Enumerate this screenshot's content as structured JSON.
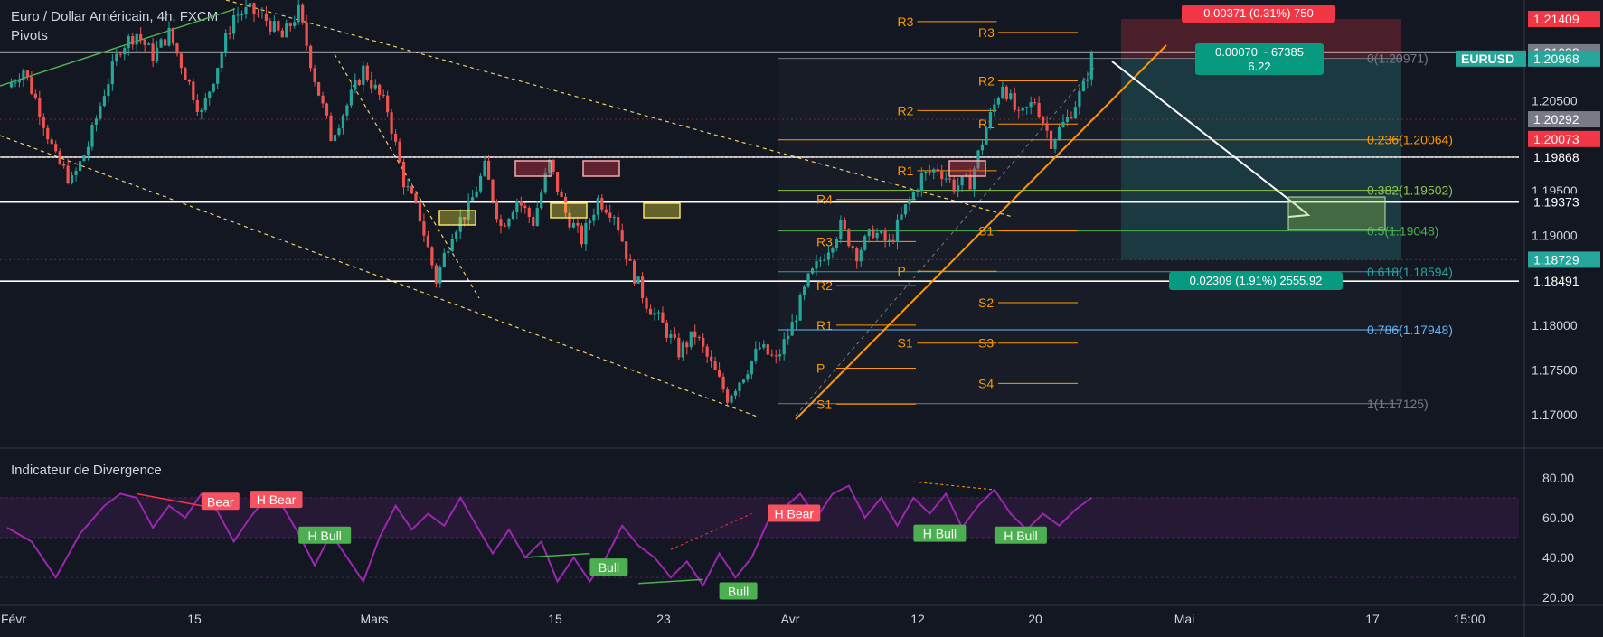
{
  "header": {
    "title": "Euro / Dollar Américain, 4h, FXCM",
    "study": "Pivots"
  },
  "indicator": {
    "title": "Indicateur de Divergence"
  },
  "colors": {
    "background": "#131722",
    "candle_up": "#26a69a",
    "candle_down": "#ef5350",
    "pivot": "#ff9800",
    "fib_green": "#4caf50",
    "fib_blue": "#64b5f6",
    "osc": "#9c27b0",
    "bear": "#f23645",
    "bull": "#4caf50"
  },
  "chart_data": [
    {
      "type": "candlestick",
      "symbol": "EURUSD",
      "timeframe": "4h",
      "ylim": [
        1.1665,
        1.215
      ],
      "x_ticks": [
        "Févr",
        "15",
        "Mars",
        "15",
        "23",
        "Avr",
        "12",
        "20",
        "Mai",
        "17",
        "15:00"
      ],
      "y_ticks": [
        "1.17000",
        "1.17500",
        "1.18000",
        "1.18500",
        "1.19000",
        "1.19500",
        "1.20500"
      ],
      "price_path": [
        {
          "t": 0,
          "p": 1.2065
        },
        {
          "t": 2,
          "p": 1.2085
        },
        {
          "t": 4,
          "p": 1.204
        },
        {
          "t": 6,
          "p": 1.1985
        },
        {
          "t": 8,
          "p": 1.196
        },
        {
          "t": 10,
          "p": 1.2
        },
        {
          "t": 12,
          "p": 1.206
        },
        {
          "t": 14,
          "p": 1.211
        },
        {
          "t": 16,
          "p": 1.2125
        },
        {
          "t": 18,
          "p": 1.21
        },
        {
          "t": 20,
          "p": 1.2125
        },
        {
          "t": 22,
          "p": 1.208
        },
        {
          "t": 24,
          "p": 1.2035
        },
        {
          "t": 26,
          "p": 1.209
        },
        {
          "t": 28,
          "p": 1.2145
        },
        {
          "t": 30,
          "p": 1.215
        },
        {
          "t": 32,
          "p": 1.214
        },
        {
          "t": 34,
          "p": 1.212
        },
        {
          "t": 36,
          "p": 1.215
        },
        {
          "t": 38,
          "p": 1.2075
        },
        {
          "t": 40,
          "p": 1.201
        },
        {
          "t": 42,
          "p": 1.2045
        },
        {
          "t": 44,
          "p": 1.2085
        },
        {
          "t": 45,
          "p": 1.207
        },
        {
          "t": 47,
          "p": 1.204
        },
        {
          "t": 49,
          "p": 1.196
        },
        {
          "t": 51,
          "p": 1.192
        },
        {
          "t": 53,
          "p": 1.185
        },
        {
          "t": 55,
          "p": 1.1905
        },
        {
          "t": 57,
          "p": 1.193
        },
        {
          "t": 59,
          "p": 1.1975
        },
        {
          "t": 61,
          "p": 1.191
        },
        {
          "t": 63,
          "p": 1.194
        },
        {
          "t": 65,
          "p": 1.1915
        },
        {
          "t": 67,
          "p": 1.198
        },
        {
          "t": 69,
          "p": 1.1925
        },
        {
          "t": 71,
          "p": 1.1895
        },
        {
          "t": 73,
          "p": 1.194
        },
        {
          "t": 75,
          "p": 1.1925
        },
        {
          "t": 77,
          "p": 1.1865
        },
        {
          "t": 79,
          "p": 1.1825
        },
        {
          "t": 81,
          "p": 1.18
        },
        {
          "t": 83,
          "p": 1.177
        },
        {
          "t": 85,
          "p": 1.179
        },
        {
          "t": 87,
          "p": 1.1755
        },
        {
          "t": 89,
          "p": 1.172
        },
        {
          "t": 91,
          "p": 1.1745
        },
        {
          "t": 93,
          "p": 1.1775
        },
        {
          "t": 95,
          "p": 1.176
        },
        {
          "t": 97,
          "p": 1.18
        },
        {
          "t": 99,
          "p": 1.185
        },
        {
          "t": 101,
          "p": 1.188
        },
        {
          "t": 103,
          "p": 1.191
        },
        {
          "t": 105,
          "p": 1.188
        },
        {
          "t": 107,
          "p": 1.1905
        },
        {
          "t": 109,
          "p": 1.189
        },
        {
          "t": 111,
          "p": 1.193
        },
        {
          "t": 113,
          "p": 1.1965
        },
        {
          "t": 115,
          "p": 1.1975
        },
        {
          "t": 117,
          "p": 1.1955
        },
        {
          "t": 119,
          "p": 1.196
        },
        {
          "t": 121,
          "p": 1.202
        },
        {
          "t": 123,
          "p": 1.207
        },
        {
          "t": 125,
          "p": 1.203
        },
        {
          "t": 127,
          "p": 1.205
        },
        {
          "t": 129,
          "p": 1.2005
        },
        {
          "t": 131,
          "p": 1.203
        },
        {
          "t": 133,
          "p": 1.2065
        },
        {
          "t": 134,
          "p": 1.2097
        }
      ],
      "horizontal_lines": [
        1.2104,
        1.1987,
        1.1937,
        1.1849
      ],
      "fibonacci": [
        {
          "level": "0(1.20971)",
          "price": 1.20971,
          "color": "#787b86"
        },
        {
          "level": "0.236(1.20064)",
          "price": 1.20064,
          "color": "#ff9800"
        },
        {
          "level": "0.382(1.19502)",
          "price": 1.19502,
          "color": "#8bc34a"
        },
        {
          "level": "0.5(1.19048)",
          "price": 1.19048,
          "color": "#4caf50"
        },
        {
          "level": "0.618(1.18594)",
          "price": 1.18594,
          "color": "#26a69a"
        },
        {
          "level": "0.786(1.17948)",
          "price": 1.17948,
          "color": "#64b5f6"
        },
        {
          "level": "1(1.17125)",
          "price": 1.17125,
          "color": "#787b86"
        }
      ],
      "pivot_labels": [
        {
          "text": "R3",
          "price": 1.2138,
          "t": 110
        },
        {
          "text": "R3",
          "price": 1.2126,
          "t": 120
        },
        {
          "text": "R2",
          "price": 1.2072,
          "t": 120
        },
        {
          "text": "R2",
          "price": 1.2039,
          "t": 110
        },
        {
          "text": "R1",
          "price": 1.2024,
          "t": 120
        },
        {
          "text": "R1",
          "price": 1.1972,
          "t": 110
        },
        {
          "text": "R4",
          "price": 1.194,
          "t": 100
        },
        {
          "text": "S1",
          "price": 1.1905,
          "t": 120
        },
        {
          "text": "R3",
          "price": 1.1893,
          "t": 100
        },
        {
          "text": "P",
          "price": 1.186,
          "t": 110
        },
        {
          "text": "R2",
          "price": 1.1844,
          "t": 100
        },
        {
          "text": "S2",
          "price": 1.1825,
          "t": 120
        },
        {
          "text": "R1",
          "price": 1.18,
          "t": 100
        },
        {
          "text": "S1",
          "price": 1.178,
          "t": 110
        },
        {
          "text": "S3",
          "price": 1.178,
          "t": 120
        },
        {
          "text": "P",
          "price": 1.1752,
          "t": 100
        },
        {
          "text": "S4",
          "price": 1.1735,
          "t": 120
        },
        {
          "text": "S1",
          "price": 1.1712,
          "t": 100
        }
      ],
      "price_tags": [
        {
          "text": "1.21409",
          "price": 1.21409,
          "bg": "#f23645"
        },
        {
          "text": "1.21039",
          "price": 1.21039,
          "bg": "#131722"
        },
        {
          "text": "1.21038",
          "price": 1.21038,
          "bg": "#787b86"
        },
        {
          "text": "1.20968",
          "price": 1.20968,
          "bg": "#26a69a"
        },
        {
          "text": "1.20292",
          "price": 1.20292,
          "bg": "#787b86"
        },
        {
          "text": "1.20073",
          "price": 1.20073,
          "bg": "#f23645"
        },
        {
          "text": "1.19868",
          "price": 1.19868,
          "bg": "#131722"
        },
        {
          "text": "1.19373",
          "price": 1.19373,
          "bg": "#131722"
        },
        {
          "text": "1.18729",
          "price": 1.18729,
          "bg": "#26a69a"
        },
        {
          "text": "1.18491",
          "price": 1.18491,
          "bg": "#131722"
        }
      ],
      "symbol_tag": "EURUSD",
      "position": {
        "stop_label": "0.00371 (0.31%) 750",
        "entry_label_1": "0.00070 ~ 67385",
        "entry_label_2": "6.22",
        "target_label": "0.02309 (1.91%) 2555.92"
      }
    },
    {
      "type": "line",
      "title": "Indicateur de Divergence",
      "ylim": [
        16,
        84
      ],
      "y_ticks": [
        "80.00",
        "60.00",
        "40.00",
        "20.00"
      ],
      "band": [
        50,
        70
      ],
      "values": [
        [
          0,
          55
        ],
        [
          3,
          48
        ],
        [
          6,
          30
        ],
        [
          9,
          52
        ],
        [
          12,
          66
        ],
        [
          14,
          72
        ],
        [
          16,
          70
        ],
        [
          18,
          55
        ],
        [
          20,
          66
        ],
        [
          22,
          60
        ],
        [
          24,
          72
        ],
        [
          26,
          63
        ],
        [
          28,
          48
        ],
        [
          30,
          60
        ],
        [
          32,
          70
        ],
        [
          34,
          66
        ],
        [
          36,
          52
        ],
        [
          38,
          36
        ],
        [
          40,
          52
        ],
        [
          42,
          40
        ],
        [
          44,
          28
        ],
        [
          46,
          50
        ],
        [
          48,
          66
        ],
        [
          50,
          54
        ],
        [
          52,
          62
        ],
        [
          54,
          56
        ],
        [
          56,
          70
        ],
        [
          58,
          56
        ],
        [
          60,
          42
        ],
        [
          62,
          54
        ],
        [
          64,
          40
        ],
        [
          66,
          48
        ],
        [
          68,
          28
        ],
        [
          70,
          40
        ],
        [
          72,
          28
        ],
        [
          74,
          40
        ],
        [
          76,
          56
        ],
        [
          78,
          46
        ],
        [
          80,
          40
        ],
        [
          82,
          30
        ],
        [
          84,
          38
        ],
        [
          86,
          26
        ],
        [
          88,
          42
        ],
        [
          90,
          30
        ],
        [
          92,
          40
        ],
        [
          94,
          58
        ],
        [
          96,
          65
        ],
        [
          98,
          72
        ],
        [
          100,
          60
        ],
        [
          102,
          72
        ],
        [
          104,
          76
        ],
        [
          106,
          60
        ],
        [
          108,
          70
        ],
        [
          110,
          56
        ],
        [
          112,
          70
        ],
        [
          114,
          62
        ],
        [
          116,
          72
        ],
        [
          118,
          55
        ],
        [
          120,
          66
        ],
        [
          122,
          74
        ],
        [
          124,
          62
        ],
        [
          126,
          54
        ],
        [
          128,
          62
        ],
        [
          130,
          56
        ],
        [
          132,
          64
        ],
        [
          134,
          70
        ]
      ],
      "labels": [
        {
          "text": "Bear",
          "t": 24,
          "v": 68,
          "kind": "bear"
        },
        {
          "text": "H Bear",
          "t": 30,
          "v": 69,
          "kind": "bear"
        },
        {
          "text": "H Bull",
          "t": 36,
          "v": 51,
          "kind": "bull"
        },
        {
          "text": "Bull",
          "t": 72,
          "v": 35,
          "kind": "bull"
        },
        {
          "text": "Bull",
          "t": 88,
          "v": 23,
          "kind": "bull"
        },
        {
          "text": "H Bear",
          "t": 94,
          "v": 62,
          "kind": "bear"
        },
        {
          "text": "H Bull",
          "t": 112,
          "v": 52,
          "kind": "bull"
        },
        {
          "text": "H Bull",
          "t": 122,
          "v": 51,
          "kind": "bull"
        }
      ]
    }
  ]
}
